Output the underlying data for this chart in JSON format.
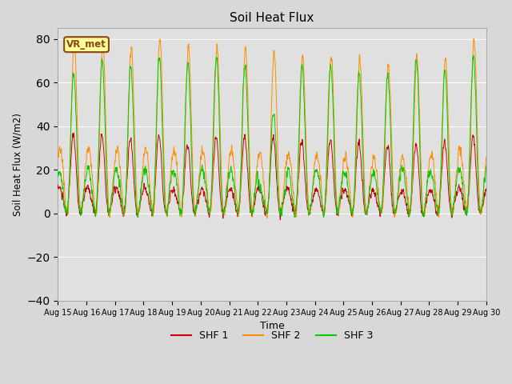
{
  "title": "Soil Heat Flux",
  "ylabel": "Soil Heat Flux (W/m2)",
  "xlabel": "Time",
  "ylim": [
    -40,
    85
  ],
  "yticks": [
    -40,
    -20,
    0,
    20,
    40,
    60,
    80
  ],
  "figure_bg": "#d8d8d8",
  "plot_bg": "#e0e0e0",
  "annotation_text": "VR_met",
  "annotation_bg": "#ffff99",
  "annotation_border": "#8b4513",
  "line_colors": {
    "SHF 1": "#cc0000",
    "SHF 2": "#ff8c00",
    "SHF 3": "#00cc00"
  },
  "n_days": 15,
  "start_day": 15,
  "points_per_day": 144
}
